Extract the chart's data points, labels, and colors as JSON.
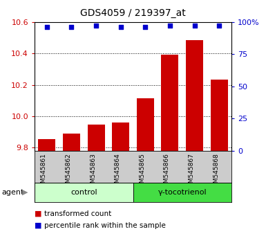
{
  "title": "GDS4059 / 219397_at",
  "samples": [
    "GSM545861",
    "GSM545862",
    "GSM545863",
    "GSM545864",
    "GSM545865",
    "GSM545866",
    "GSM545867",
    "GSM545868"
  ],
  "bar_values": [
    9.855,
    9.89,
    9.945,
    9.96,
    10.115,
    10.39,
    10.485,
    10.235
  ],
  "scatter_values": [
    96,
    96,
    97,
    96,
    96,
    97.5,
    97.5,
    97
  ],
  "ylim_left": [
    9.78,
    10.6
  ],
  "ylim_right": [
    0,
    100
  ],
  "yticks_left": [
    9.8,
    10.0,
    10.2,
    10.4,
    10.6
  ],
  "yticks_right": [
    0,
    25,
    50,
    75,
    100
  ],
  "bar_color": "#cc0000",
  "scatter_color": "#0000cc",
  "bar_width": 0.7,
  "groups": [
    {
      "label": "control",
      "indices": [
        0,
        1,
        2,
        3
      ],
      "color": "#ccffcc"
    },
    {
      "label": "γ-tocotrienol",
      "indices": [
        4,
        5,
        6,
        7
      ],
      "color": "#44dd44"
    }
  ],
  "agent_label": "agent",
  "left_color": "#cc0000",
  "right_color": "#0000cc",
  "tick_area_bg": "#cccccc",
  "plot_bg": "#ffffff",
  "legend_items": [
    {
      "label": "transformed count",
      "color": "#cc0000"
    },
    {
      "label": "percentile rank within the sample",
      "color": "#0000cc"
    }
  ]
}
